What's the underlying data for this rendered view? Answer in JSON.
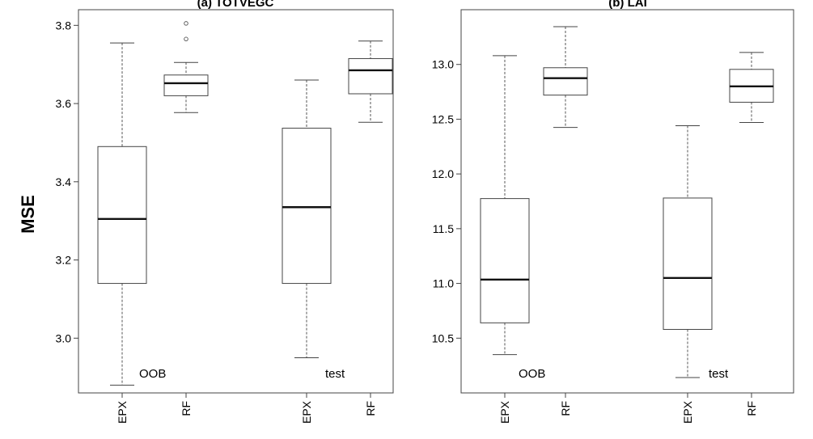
{
  "ylabel": "MSE",
  "chart_data": [
    {
      "type": "box",
      "title": "(a) TOTVEGC",
      "ylabel": "MSE",
      "ylim": [
        2.86,
        3.84
      ],
      "yticks": [
        3.0,
        3.2,
        3.4,
        3.6,
        3.8
      ],
      "ytick_labels": [
        "3.0",
        "3.2",
        "3.4",
        "3.6",
        "3.8"
      ],
      "categories": [
        "EPX",
        "RF",
        "EPX",
        "RF"
      ],
      "group_labels": [
        "OOB",
        "test"
      ],
      "boxes": [
        {
          "category": "EPX",
          "group": "OOB",
          "min": 2.88,
          "q1": 3.14,
          "median": 3.305,
          "q3": 3.49,
          "max": 3.755,
          "outliers": []
        },
        {
          "category": "RF",
          "group": "OOB",
          "min": 3.577,
          "q1": 3.62,
          "median": 3.652,
          "q3": 3.673,
          "max": 3.705,
          "outliers": [
            3.765,
            3.805
          ]
        },
        {
          "category": "EPX",
          "group": "test",
          "min": 2.95,
          "q1": 3.14,
          "median": 3.335,
          "q3": 3.537,
          "max": 3.66,
          "outliers": []
        },
        {
          "category": "RF",
          "group": "test",
          "min": 3.552,
          "q1": 3.625,
          "median": 3.685,
          "q3": 3.715,
          "max": 3.76,
          "outliers": []
        }
      ]
    },
    {
      "type": "box",
      "title": "(b) LAI",
      "ylabel": "",
      "ylim": [
        10.0,
        13.5
      ],
      "yticks": [
        10.5,
        11.0,
        11.5,
        12.0,
        12.5,
        13.0
      ],
      "ytick_labels": [
        "10.5",
        "11.0",
        "11.5",
        "12.0",
        "12.5",
        "13.0"
      ],
      "categories": [
        "EPX",
        "RF",
        "EPX",
        "RF"
      ],
      "group_labels": [
        "OOB",
        "test"
      ],
      "boxes": [
        {
          "category": "EPX",
          "group": "OOB",
          "min": 10.35,
          "q1": 10.64,
          "median": 11.035,
          "q3": 11.775,
          "max": 13.08,
          "outliers": []
        },
        {
          "category": "RF",
          "group": "OOB",
          "min": 12.425,
          "q1": 12.72,
          "median": 12.875,
          "q3": 12.97,
          "max": 13.345,
          "outliers": []
        },
        {
          "category": "EPX",
          "group": "test",
          "min": 10.14,
          "q1": 10.58,
          "median": 11.05,
          "q3": 11.78,
          "max": 12.44,
          "outliers": []
        },
        {
          "category": "RF",
          "group": "test",
          "min": 12.47,
          "q1": 12.655,
          "median": 12.8,
          "q3": 12.955,
          "max": 13.11,
          "outliers": []
        }
      ]
    }
  ]
}
